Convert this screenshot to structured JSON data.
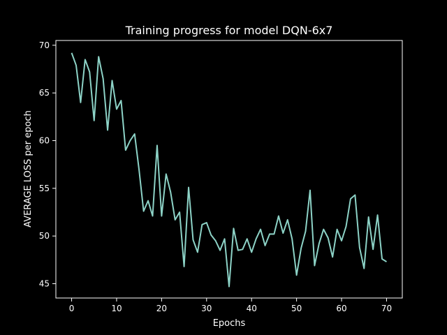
{
  "chart_data": {
    "type": "line",
    "title": "Training progress for model DQN-6x7",
    "xlabel": "Epochs",
    "ylabel": "AVERAGE LOSS per epoch",
    "xlim": [
      -3.5,
      73.5
    ],
    "ylim": [
      43.5,
      70.5
    ],
    "xticks": [
      0,
      10,
      20,
      30,
      40,
      50,
      60,
      70
    ],
    "yticks": [
      45,
      50,
      55,
      60,
      65,
      70
    ],
    "grid": false,
    "line_color": "#8dd3c7",
    "background": "#000000",
    "foreground": "#ffffff",
    "series": [
      {
        "x": [
          0,
          1,
          2,
          3,
          4,
          5,
          6,
          7,
          8,
          9,
          10,
          11,
          12,
          13,
          14,
          15,
          16,
          17,
          18,
          19,
          20,
          21,
          22,
          23,
          24,
          25,
          26,
          27,
          28,
          29,
          30,
          31,
          32,
          33,
          34,
          35,
          36,
          37,
          38,
          39,
          40,
          41,
          42,
          43,
          44,
          45,
          46,
          47,
          48,
          49,
          50,
          51,
          52,
          53,
          54,
          55,
          56,
          57,
          58,
          59,
          60,
          61,
          62,
          63,
          64,
          65,
          66,
          67,
          68,
          69,
          70
        ],
        "y": [
          69.2,
          67.9,
          64.0,
          68.5,
          67.2,
          62.1,
          68.8,
          66.5,
          61.1,
          66.3,
          63.3,
          64.2,
          59.0,
          60.0,
          60.7,
          56.9,
          52.6,
          53.7,
          52.1,
          59.5,
          52.1,
          56.5,
          54.6,
          51.7,
          52.5,
          46.8,
          55.1,
          49.6,
          48.3,
          51.2,
          51.4,
          50.1,
          49.5,
          48.5,
          49.7,
          44.7,
          50.8,
          48.5,
          48.6,
          49.7,
          48.3,
          49.7,
          50.7,
          49.0,
          50.2,
          50.2,
          52.1,
          50.3,
          51.7,
          49.7,
          45.9,
          48.7,
          50.5,
          54.8,
          46.9,
          49.2,
          50.7,
          49.8,
          47.8,
          50.7,
          49.5,
          51.0,
          53.9,
          54.3,
          48.8,
          46.6,
          52.0,
          48.6,
          52.2,
          47.6,
          47.3
        ]
      }
    ]
  }
}
